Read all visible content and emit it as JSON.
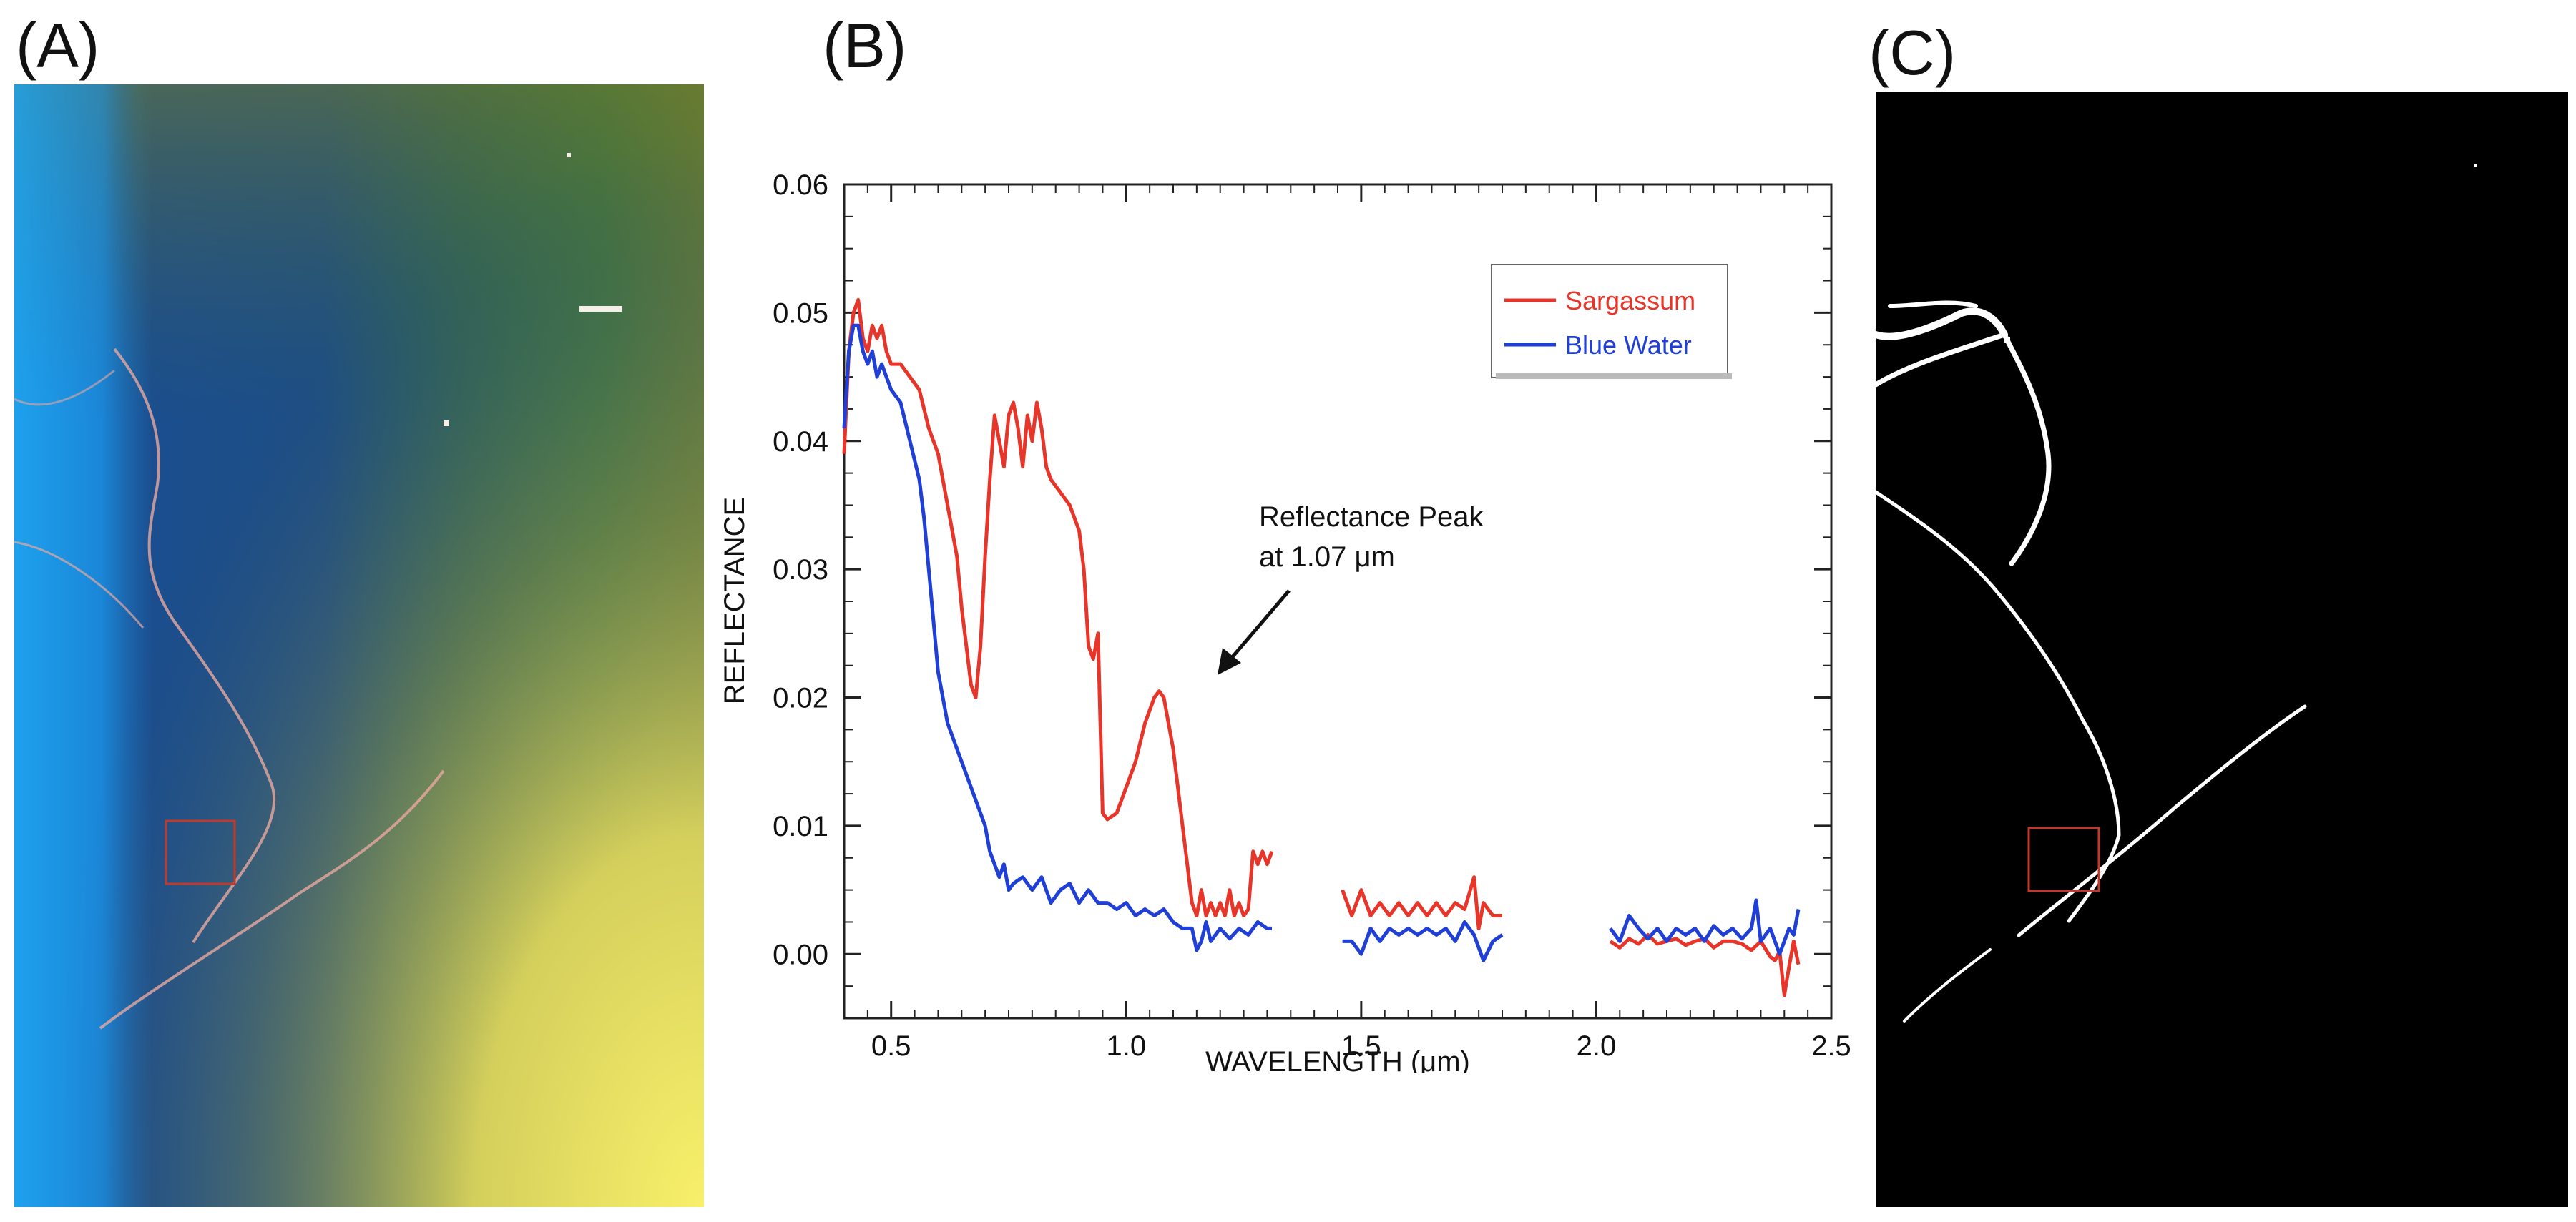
{
  "panels": {
    "a_label": "(A)",
    "b_label": "(B)",
    "c_label": "(C)"
  },
  "colors": {
    "sargassum": "#e8352a",
    "blue_water": "#1f3fd6",
    "roi_box": "#c0392b"
  },
  "chart_data": {
    "type": "line",
    "xlabel": "WAVELENGTH (μm)",
    "ylabel": "REFLECTANCE",
    "xlim": [
      0.4,
      2.5
    ],
    "ylim": [
      -0.005,
      0.06
    ],
    "xticks": [
      0.5,
      1.0,
      1.5,
      2.0,
      2.5
    ],
    "xtick_labels": [
      "0.5",
      "1.0",
      "1.5",
      "2.0",
      "2.5"
    ],
    "yticks": [
      0.0,
      0.01,
      0.02,
      0.03,
      0.04,
      0.05,
      0.06
    ],
    "ytick_labels": [
      "0.00",
      "0.01",
      "0.02",
      "0.03",
      "0.04",
      "0.05",
      "0.06"
    ],
    "legend": {
      "position": "top-right",
      "entries": [
        "Sargassum",
        "Blue Water"
      ]
    },
    "annotation": {
      "line1": "Reflectance Peak",
      "line2": "at 1.07 μm",
      "x": 1.07,
      "y": 0.0205
    },
    "series": [
      {
        "name": "Sargassum",
        "segments": [
          [
            [
              0.4,
              0.039
            ],
            [
              0.41,
              0.047
            ],
            [
              0.42,
              0.05
            ],
            [
              0.43,
              0.051
            ],
            [
              0.44,
              0.048
            ],
            [
              0.45,
              0.047
            ],
            [
              0.46,
              0.049
            ],
            [
              0.47,
              0.048
            ],
            [
              0.48,
              0.049
            ],
            [
              0.49,
              0.047
            ],
            [
              0.5,
              0.046
            ],
            [
              0.52,
              0.046
            ],
            [
              0.54,
              0.045
            ],
            [
              0.56,
              0.044
            ],
            [
              0.58,
              0.041
            ],
            [
              0.6,
              0.039
            ],
            [
              0.62,
              0.035
            ],
            [
              0.64,
              0.031
            ],
            [
              0.65,
              0.027
            ],
            [
              0.66,
              0.024
            ],
            [
              0.67,
              0.021
            ],
            [
              0.68,
              0.02
            ],
            [
              0.69,
              0.024
            ],
            [
              0.7,
              0.031
            ],
            [
              0.71,
              0.037
            ],
            [
              0.72,
              0.042
            ],
            [
              0.73,
              0.04
            ],
            [
              0.74,
              0.038
            ],
            [
              0.75,
              0.042
            ],
            [
              0.76,
              0.043
            ],
            [
              0.77,
              0.041
            ],
            [
              0.78,
              0.038
            ],
            [
              0.79,
              0.042
            ],
            [
              0.8,
              0.04
            ],
            [
              0.81,
              0.043
            ],
            [
              0.82,
              0.041
            ],
            [
              0.83,
              0.038
            ],
            [
              0.84,
              0.037
            ],
            [
              0.86,
              0.036
            ],
            [
              0.88,
              0.035
            ],
            [
              0.9,
              0.033
            ],
            [
              0.91,
              0.03
            ],
            [
              0.92,
              0.024
            ],
            [
              0.93,
              0.023
            ],
            [
              0.94,
              0.025
            ],
            [
              0.95,
              0.011
            ],
            [
              0.96,
              0.0105
            ],
            [
              0.98,
              0.011
            ],
            [
              1.0,
              0.013
            ],
            [
              1.02,
              0.015
            ],
            [
              1.04,
              0.018
            ],
            [
              1.06,
              0.02
            ],
            [
              1.07,
              0.0205
            ],
            [
              1.08,
              0.02
            ],
            [
              1.1,
              0.016
            ],
            [
              1.12,
              0.01
            ],
            [
              1.14,
              0.004
            ],
            [
              1.15,
              0.003
            ],
            [
              1.16,
              0.005
            ],
            [
              1.17,
              0.003
            ],
            [
              1.18,
              0.004
            ],
            [
              1.19,
              0.003
            ],
            [
              1.2,
              0.004
            ],
            [
              1.21,
              0.003
            ],
            [
              1.22,
              0.005
            ],
            [
              1.23,
              0.003
            ],
            [
              1.24,
              0.004
            ],
            [
              1.25,
              0.003
            ],
            [
              1.26,
              0.0035
            ],
            [
              1.27,
              0.008
            ],
            [
              1.28,
              0.007
            ],
            [
              1.29,
              0.008
            ],
            [
              1.3,
              0.007
            ],
            [
              1.31,
              0.008
            ]
          ],
          [
            [
              1.46,
              0.005
            ],
            [
              1.48,
              0.003
            ],
            [
              1.5,
              0.005
            ],
            [
              1.52,
              0.003
            ],
            [
              1.54,
              0.004
            ],
            [
              1.56,
              0.003
            ],
            [
              1.58,
              0.004
            ],
            [
              1.6,
              0.003
            ],
            [
              1.62,
              0.004
            ],
            [
              1.64,
              0.003
            ],
            [
              1.66,
              0.004
            ],
            [
              1.68,
              0.003
            ],
            [
              1.7,
              0.004
            ],
            [
              1.72,
              0.0035
            ],
            [
              1.74,
              0.006
            ],
            [
              1.75,
              0.002
            ],
            [
              1.76,
              0.004
            ],
            [
              1.78,
              0.003
            ],
            [
              1.8,
              0.003
            ]
          ],
          [
            [
              2.03,
              0.001
            ],
            [
              2.05,
              0.0005
            ],
            [
              2.07,
              0.0012
            ],
            [
              2.09,
              0.0008
            ],
            [
              2.11,
              0.0015
            ],
            [
              2.13,
              0.0008
            ],
            [
              2.15,
              0.001
            ],
            [
              2.17,
              0.0012
            ],
            [
              2.19,
              0.0007
            ],
            [
              2.21,
              0.001
            ],
            [
              2.23,
              0.0012
            ],
            [
              2.25,
              0.0005
            ],
            [
              2.27,
              0.001
            ],
            [
              2.29,
              0.001
            ],
            [
              2.31,
              0.0008
            ],
            [
              2.33,
              0.0003
            ],
            [
              2.35,
              0.001
            ],
            [
              2.37,
              -0.0002
            ],
            [
              2.38,
              -0.0005
            ],
            [
              2.39,
              0.0002
            ],
            [
              2.4,
              -0.0032
            ],
            [
              2.41,
              -0.001
            ],
            [
              2.42,
              0.001
            ],
            [
              2.43,
              -0.0008
            ]
          ]
        ]
      },
      {
        "name": "Blue Water",
        "segments": [
          [
            [
              0.4,
              0.041
            ],
            [
              0.41,
              0.047
            ],
            [
              0.42,
              0.049
            ],
            [
              0.43,
              0.049
            ],
            [
              0.44,
              0.047
            ],
            [
              0.45,
              0.046
            ],
            [
              0.46,
              0.047
            ],
            [
              0.47,
              0.045
            ],
            [
              0.48,
              0.046
            ],
            [
              0.49,
              0.045
            ],
            [
              0.5,
              0.044
            ],
            [
              0.52,
              0.043
            ],
            [
              0.54,
              0.04
            ],
            [
              0.56,
              0.037
            ],
            [
              0.57,
              0.034
            ],
            [
              0.58,
              0.03
            ],
            [
              0.6,
              0.022
            ],
            [
              0.62,
              0.018
            ],
            [
              0.64,
              0.016
            ],
            [
              0.66,
              0.014
            ],
            [
              0.68,
              0.012
            ],
            [
              0.7,
              0.01
            ],
            [
              0.71,
              0.008
            ],
            [
              0.72,
              0.007
            ],
            [
              0.73,
              0.006
            ],
            [
              0.74,
              0.007
            ],
            [
              0.75,
              0.005
            ],
            [
              0.76,
              0.0055
            ],
            [
              0.78,
              0.006
            ],
            [
              0.8,
              0.005
            ],
            [
              0.82,
              0.006
            ],
            [
              0.84,
              0.004
            ],
            [
              0.86,
              0.005
            ],
            [
              0.88,
              0.0055
            ],
            [
              0.9,
              0.004
            ],
            [
              0.92,
              0.005
            ],
            [
              0.94,
              0.004
            ],
            [
              0.96,
              0.004
            ],
            [
              0.98,
              0.0035
            ],
            [
              1.0,
              0.004
            ],
            [
              1.02,
              0.003
            ],
            [
              1.04,
              0.0035
            ],
            [
              1.06,
              0.003
            ],
            [
              1.08,
              0.0035
            ],
            [
              1.1,
              0.0025
            ],
            [
              1.12,
              0.002
            ],
            [
              1.14,
              0.002
            ],
            [
              1.15,
              0.0003
            ],
            [
              1.16,
              0.001
            ],
            [
              1.17,
              0.0025
            ],
            [
              1.18,
              0.001
            ],
            [
              1.2,
              0.002
            ],
            [
              1.22,
              0.0012
            ],
            [
              1.24,
              0.002
            ],
            [
              1.26,
              0.0015
            ],
            [
              1.28,
              0.0025
            ],
            [
              1.3,
              0.002
            ],
            [
              1.31,
              0.002
            ]
          ],
          [
            [
              1.46,
              0.001
            ],
            [
              1.48,
              0.001
            ],
            [
              1.5,
              0.0
            ],
            [
              1.52,
              0.002
            ],
            [
              1.54,
              0.001
            ],
            [
              1.56,
              0.002
            ],
            [
              1.58,
              0.0015
            ],
            [
              1.6,
              0.002
            ],
            [
              1.62,
              0.0015
            ],
            [
              1.64,
              0.002
            ],
            [
              1.66,
              0.0015
            ],
            [
              1.68,
              0.002
            ],
            [
              1.7,
              0.001
            ],
            [
              1.72,
              0.0025
            ],
            [
              1.74,
              0.0015
            ],
            [
              1.76,
              -0.0005
            ],
            [
              1.78,
              0.001
            ],
            [
              1.8,
              0.0015
            ]
          ],
          [
            [
              2.03,
              0.002
            ],
            [
              2.05,
              0.001
            ],
            [
              2.07,
              0.003
            ],
            [
              2.09,
              0.002
            ],
            [
              2.11,
              0.0012
            ],
            [
              2.13,
              0.002
            ],
            [
              2.15,
              0.001
            ],
            [
              2.17,
              0.002
            ],
            [
              2.19,
              0.0015
            ],
            [
              2.21,
              0.002
            ],
            [
              2.23,
              0.001
            ],
            [
              2.25,
              0.0022
            ],
            [
              2.27,
              0.0015
            ],
            [
              2.29,
              0.002
            ],
            [
              2.31,
              0.0012
            ],
            [
              2.33,
              0.002
            ],
            [
              2.34,
              0.0042
            ],
            [
              2.35,
              0.001
            ],
            [
              2.37,
              0.002
            ],
            [
              2.39,
              0.0
            ],
            [
              2.41,
              0.002
            ],
            [
              2.42,
              0.0015
            ],
            [
              2.43,
              0.0035
            ]
          ]
        ]
      }
    ]
  }
}
